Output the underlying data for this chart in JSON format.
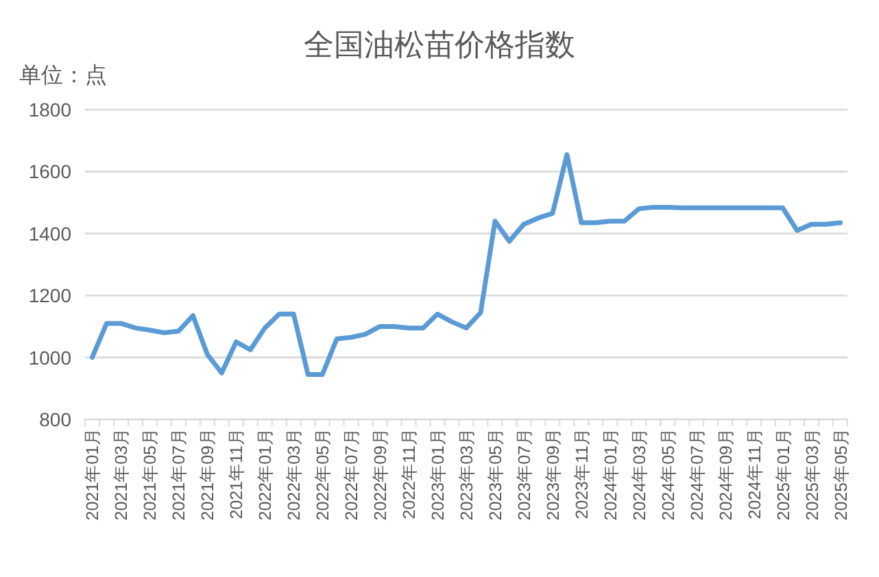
{
  "chart_data": {
    "type": "line",
    "title": "全国油松苗价格指数",
    "ylabel": "单位：点",
    "categories": [
      "2021年01月",
      null,
      "2021年03月",
      null,
      "2021年05月",
      null,
      "2021年07月",
      null,
      "2021年09月",
      null,
      "2021年11月",
      null,
      "2022年01月",
      null,
      "2022年03月",
      null,
      "2022年05月",
      null,
      "2022年07月",
      null,
      "2022年09月",
      null,
      "2022年11月",
      null,
      "2023年01月",
      null,
      "2023年03月",
      null,
      "2023年05月",
      null,
      "2023年07月",
      null,
      "2023年09月",
      null,
      "2023年11月",
      null,
      "2024年01月",
      null,
      "2024年03月",
      null,
      "2024年05月",
      null,
      "2024年07月",
      null,
      "2024年09月",
      null,
      "2024年11月",
      null,
      "2025年01月",
      null,
      "2025年03月",
      null,
      "2025年05月"
    ],
    "series": [
      {
        "color": "#5b9bd5",
        "values": [
          1000,
          1110,
          1110,
          1095,
          1088,
          1080,
          1085,
          1135,
          1010,
          950,
          1050,
          1025,
          1095,
          1140,
          1140,
          945,
          945,
          1060,
          1065,
          1075,
          1100,
          1100,
          1095,
          1095,
          1140,
          1115,
          1095,
          1145,
          1440,
          1375,
          1430,
          1450,
          1465,
          1655,
          1435,
          1435,
          1440,
          1440,
          1480,
          1485,
          1485,
          1483,
          1483,
          1483,
          1483,
          1483,
          1483,
          1483,
          1483,
          1410,
          1430,
          1430,
          1435
        ]
      }
    ],
    "ylim": [
      800,
      1800
    ],
    "yticks": [
      800,
      1000,
      1200,
      1400,
      1600,
      1800
    ],
    "grid": "y",
    "marker": "none",
    "line_style": "solid"
  }
}
